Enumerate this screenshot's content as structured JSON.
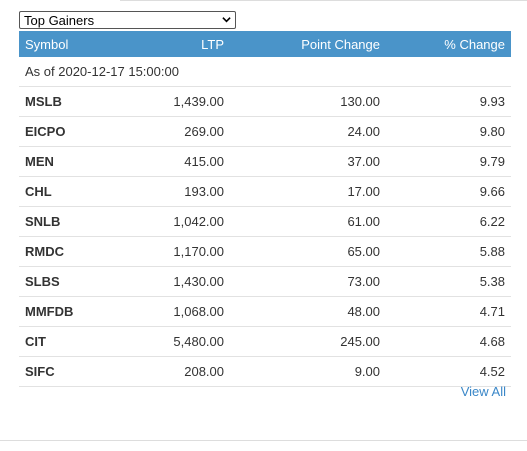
{
  "filter": {
    "selected": "Top Gainers"
  },
  "table": {
    "headers": [
      "Symbol",
      "LTP",
      "Point Change",
      "% Change"
    ],
    "as_of": "As of 2020-12-17 15:00:00",
    "rows": [
      [
        "MSLB",
        "1,439.00",
        "130.00",
        "9.93"
      ],
      [
        "EICPO",
        "269.00",
        "24.00",
        "9.80"
      ],
      [
        "MEN",
        "415.00",
        "37.00",
        "9.79"
      ],
      [
        "CHL",
        "193.00",
        "17.00",
        "9.66"
      ],
      [
        "SNLB",
        "1,042.00",
        "61.00",
        "6.22"
      ],
      [
        "RMDC",
        "1,170.00",
        "65.00",
        "5.88"
      ],
      [
        "SLBS",
        "1,430.00",
        "73.00",
        "5.38"
      ],
      [
        "MMFDB",
        "1,068.00",
        "48.00",
        "4.71"
      ],
      [
        "CIT",
        "5,480.00",
        "245.00",
        "4.68"
      ],
      [
        "SIFC",
        "208.00",
        "9.00",
        "4.52"
      ]
    ]
  },
  "footer": {
    "view_all": "View All"
  },
  "colors": {
    "header_bg": "#4a94c9",
    "link": "#3a87c8"
  },
  "icons": {
    "dropdown": "chevron-down-icon"
  }
}
